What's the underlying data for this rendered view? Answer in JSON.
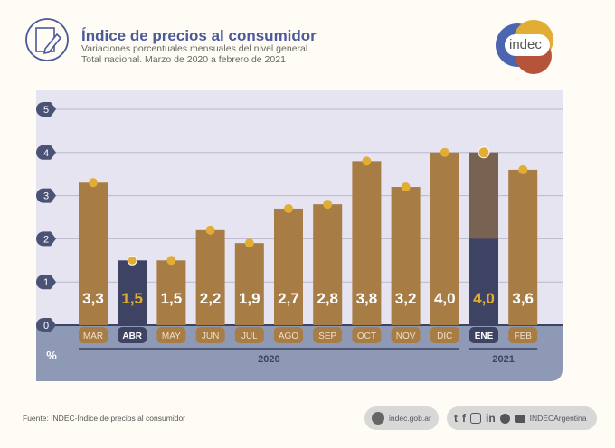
{
  "header": {
    "title": "Índice de precios al consumidor",
    "subtitle_line1": "Variaciones porcentuales mensuales del nivel general.",
    "subtitle_line2": "Total nacional. Marzo de 2020 a febrero de 2021",
    "logo_text": "indec"
  },
  "chart_data": {
    "type": "bar",
    "title": "Índice de precios al consumidor",
    "ylabel": "%",
    "ylim": [
      0,
      5
    ],
    "yticks": [
      "0",
      "1",
      "2",
      "3",
      "4",
      "5"
    ],
    "grid": true,
    "categories": [
      "MAR",
      "ABR",
      "MAY",
      "JUN",
      "JUL",
      "AGO",
      "SEP",
      "OCT",
      "NOV",
      "DIC",
      "ENE",
      "FEB"
    ],
    "values": [
      3.3,
      1.5,
      1.5,
      2.2,
      1.9,
      2.7,
      2.8,
      3.8,
      3.2,
      4.0,
      4.0,
      3.6
    ],
    "labels": [
      "3,3",
      "1,5",
      "1,5",
      "2,2",
      "1,9",
      "2,7",
      "2,8",
      "3,8",
      "3,2",
      "4,0",
      "4,0",
      "3,6"
    ],
    "highlighted": [
      "ABR",
      "ENE"
    ],
    "year_groups": [
      {
        "label": "2020",
        "from": "MAR",
        "to": "DIC"
      },
      {
        "label": "2021",
        "from": "ENE",
        "to": "FEB"
      }
    ],
    "colors": {
      "bar": "#a87c45",
      "highlight": "#3e4363",
      "marker": "#e2ad35",
      "plot_bg": "#e6e4f0",
      "band": "#8e9ab5",
      "label_highlight": "#e2ad35"
    }
  },
  "footer": {
    "source": "Fuente: INDEC-Índice de precios al consumidor",
    "website": "indec.gob.ar",
    "social_handle": "INDECArgentina",
    "social_icons": [
      "twitter-icon",
      "facebook-icon",
      "instagram-icon",
      "linkedin-icon",
      "spotify-icon",
      "youtube-icon"
    ]
  }
}
